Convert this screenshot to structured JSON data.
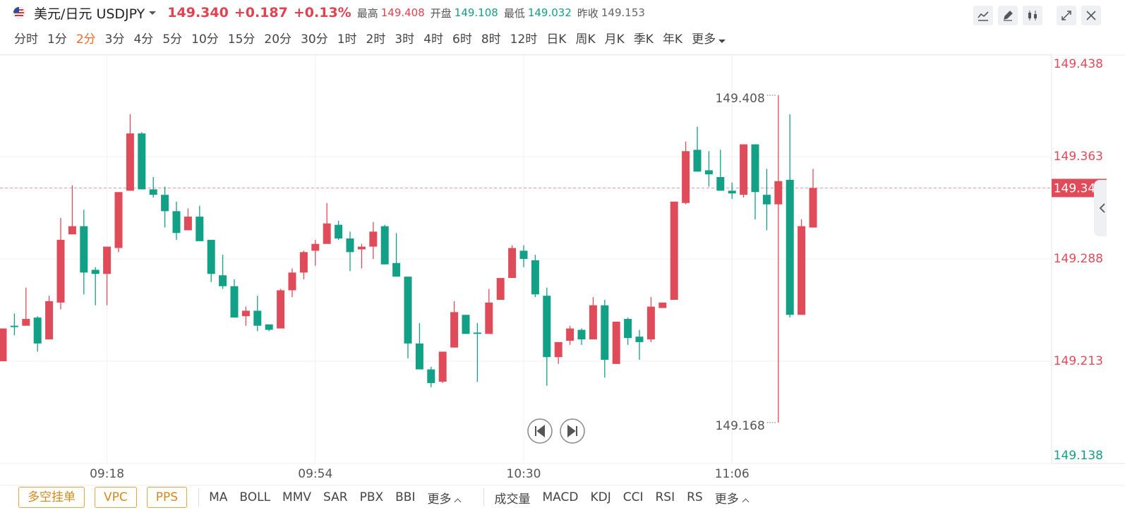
{
  "header": {
    "pair": "美元/日元 USDJPY",
    "price": "149.340",
    "change": "+0.187",
    "change_pct": "+0.13%",
    "high_label": "最高",
    "high": "149.408",
    "open_label": "开盘",
    "open": "149.108",
    "low_label": "最低",
    "low": "149.032",
    "prev_label": "昨收",
    "prev": "149.153"
  },
  "periods": {
    "items": [
      "分时",
      "1分",
      "2分",
      "3分",
      "4分",
      "5分",
      "10分",
      "15分",
      "20分",
      "30分",
      "1时",
      "2时",
      "3时",
      "4时",
      "6时",
      "8时",
      "12时",
      "日K",
      "周K",
      "月K",
      "季K",
      "年K",
      "更多"
    ],
    "selected": 2
  },
  "chart_data": {
    "type": "candlestick",
    "categories": [
      null,
      null,
      null,
      null,
      null,
      null,
      null,
      null,
      null,
      "09:18",
      null,
      null,
      null,
      null,
      null,
      null,
      null,
      null,
      null,
      null,
      null,
      null,
      null,
      null,
      null,
      null,
      null,
      "09:54",
      null,
      null,
      null,
      null,
      null,
      null,
      null,
      null,
      null,
      null,
      null,
      null,
      null,
      null,
      null,
      null,
      null,
      "10:30",
      null,
      null,
      null,
      null,
      null,
      null,
      null,
      null,
      null,
      null,
      null,
      null,
      null,
      null,
      null,
      null,
      null,
      "11:06",
      null,
      null,
      null,
      null,
      null,
      null,
      null
    ],
    "open": [
      149.213,
      149.239,
      149.239,
      149.245,
      149.229,
      149.256,
      149.306,
      149.312,
      149.28,
      149.277,
      149.296,
      149.338,
      149.38,
      149.339,
      149.335,
      149.323,
      149.309,
      149.319,
      149.302,
      149.276,
      149.268,
      149.246,
      149.25,
      149.24,
      149.237,
      149.265,
      149.278,
      149.294,
      149.299,
      149.313,
      149.303,
      149.295,
      149.297,
      149.312,
      149.285,
      149.275,
      149.226,
      149.207,
      149.198,
      149.223,
      149.247,
      149.234,
      149.233,
      149.258,
      149.274,
      149.294,
      149.287,
      149.261,
      149.216,
      149.228,
      149.236,
      149.229,
      149.254,
      149.211,
      149.244,
      149.231,
      149.229,
      149.252,
      149.258,
      149.329,
      149.368,
      149.353,
      149.348,
      149.338,
      149.335,
      149.372,
      149.335,
      149.328,
      149.346,
      149.247,
      149.311
    ],
    "high": [
      149.237,
      149.248,
      149.267,
      149.246,
      149.261,
      149.318,
      149.342,
      149.324,
      149.282,
      149.297,
      149.337,
      149.394,
      149.381,
      149.348,
      149.341,
      149.33,
      149.325,
      149.327,
      149.302,
      149.291,
      149.273,
      149.253,
      149.261,
      149.24,
      149.266,
      149.281,
      149.294,
      149.302,
      149.329,
      149.316,
      149.308,
      149.299,
      149.315,
      149.313,
      149.307,
      149.275,
      149.241,
      149.209,
      149.22,
      149.257,
      149.247,
      149.241,
      149.266,
      149.274,
      149.298,
      149.298,
      149.291,
      149.267,
      149.227,
      149.239,
      149.237,
      149.26,
      149.258,
      149.242,
      149.245,
      149.236,
      149.26,
      149.256,
      149.33,
      149.374,
      149.385,
      149.367,
      149.368,
      149.344,
      149.372,
      149.372,
      149.354,
      149.408,
      149.394,
      149.317,
      149.354
    ],
    "low": [
      149.213,
      149.232,
      149.239,
      149.22,
      149.229,
      149.251,
      149.306,
      149.262,
      149.254,
      149.254,
      149.293,
      149.338,
      149.339,
      149.333,
      149.311,
      149.302,
      149.309,
      149.301,
      149.271,
      149.266,
      149.245,
      149.239,
      149.235,
      149.235,
      149.237,
      149.26,
      149.273,
      149.283,
      149.299,
      149.302,
      149.279,
      149.281,
      149.288,
      149.284,
      149.275,
      149.215,
      149.207,
      149.194,
      149.197,
      149.223,
      149.233,
      149.198,
      149.233,
      149.258,
      149.274,
      149.282,
      149.26,
      149.195,
      149.211,
      149.225,
      149.225,
      149.229,
      149.201,
      149.211,
      149.225,
      149.214,
      149.227,
      149.252,
      149.258,
      149.328,
      149.352,
      149.341,
      149.338,
      149.332,
      149.333,
      149.317,
      149.309,
      149.168,
      149.245,
      149.247,
      149.311
    ],
    "close": [
      149.237,
      149.238,
      149.244,
      149.226,
      149.257,
      149.302,
      149.312,
      149.278,
      149.277,
      149.297,
      149.337,
      149.38,
      149.339,
      149.335,
      149.323,
      149.307,
      149.319,
      149.301,
      149.277,
      149.268,
      149.245,
      149.25,
      149.239,
      149.236,
      149.265,
      149.278,
      149.293,
      149.299,
      149.314,
      149.303,
      149.293,
      149.297,
      149.308,
      149.284,
      149.275,
      149.226,
      149.207,
      149.197,
      149.22,
      149.249,
      149.233,
      149.233,
      149.256,
      149.274,
      149.296,
      149.288,
      149.262,
      149.216,
      149.227,
      149.237,
      149.229,
      149.254,
      149.214,
      149.242,
      149.23,
      149.227,
      149.253,
      149.256,
      149.33,
      149.367,
      149.352,
      149.35,
      149.338,
      149.336,
      149.372,
      149.337,
      149.328,
      149.345,
      149.247,
      149.312,
      149.34
    ],
    "ylim": [
      149.138,
      149.438
    ],
    "yticks": [
      149.138,
      149.213,
      149.288,
      149.363,
      149.438
    ],
    "grid": true,
    "up_color": "#e04b5a",
    "down_color": "#12a086",
    "prev_close": 149.153,
    "last_price": {
      "value": 149.34,
      "label": "149.340"
    }
  },
  "footer": {
    "order_buttons": [
      "多空挂单",
      "VPC",
      "PPS"
    ],
    "main_indicators": [
      "MA",
      "BOLL",
      "MMV",
      "SAR",
      "PBX",
      "BBI",
      "更多"
    ],
    "sub_indicators": [
      "成交量",
      "MACD",
      "KDJ",
      "CCI",
      "RSI",
      "RS",
      "更多"
    ]
  }
}
